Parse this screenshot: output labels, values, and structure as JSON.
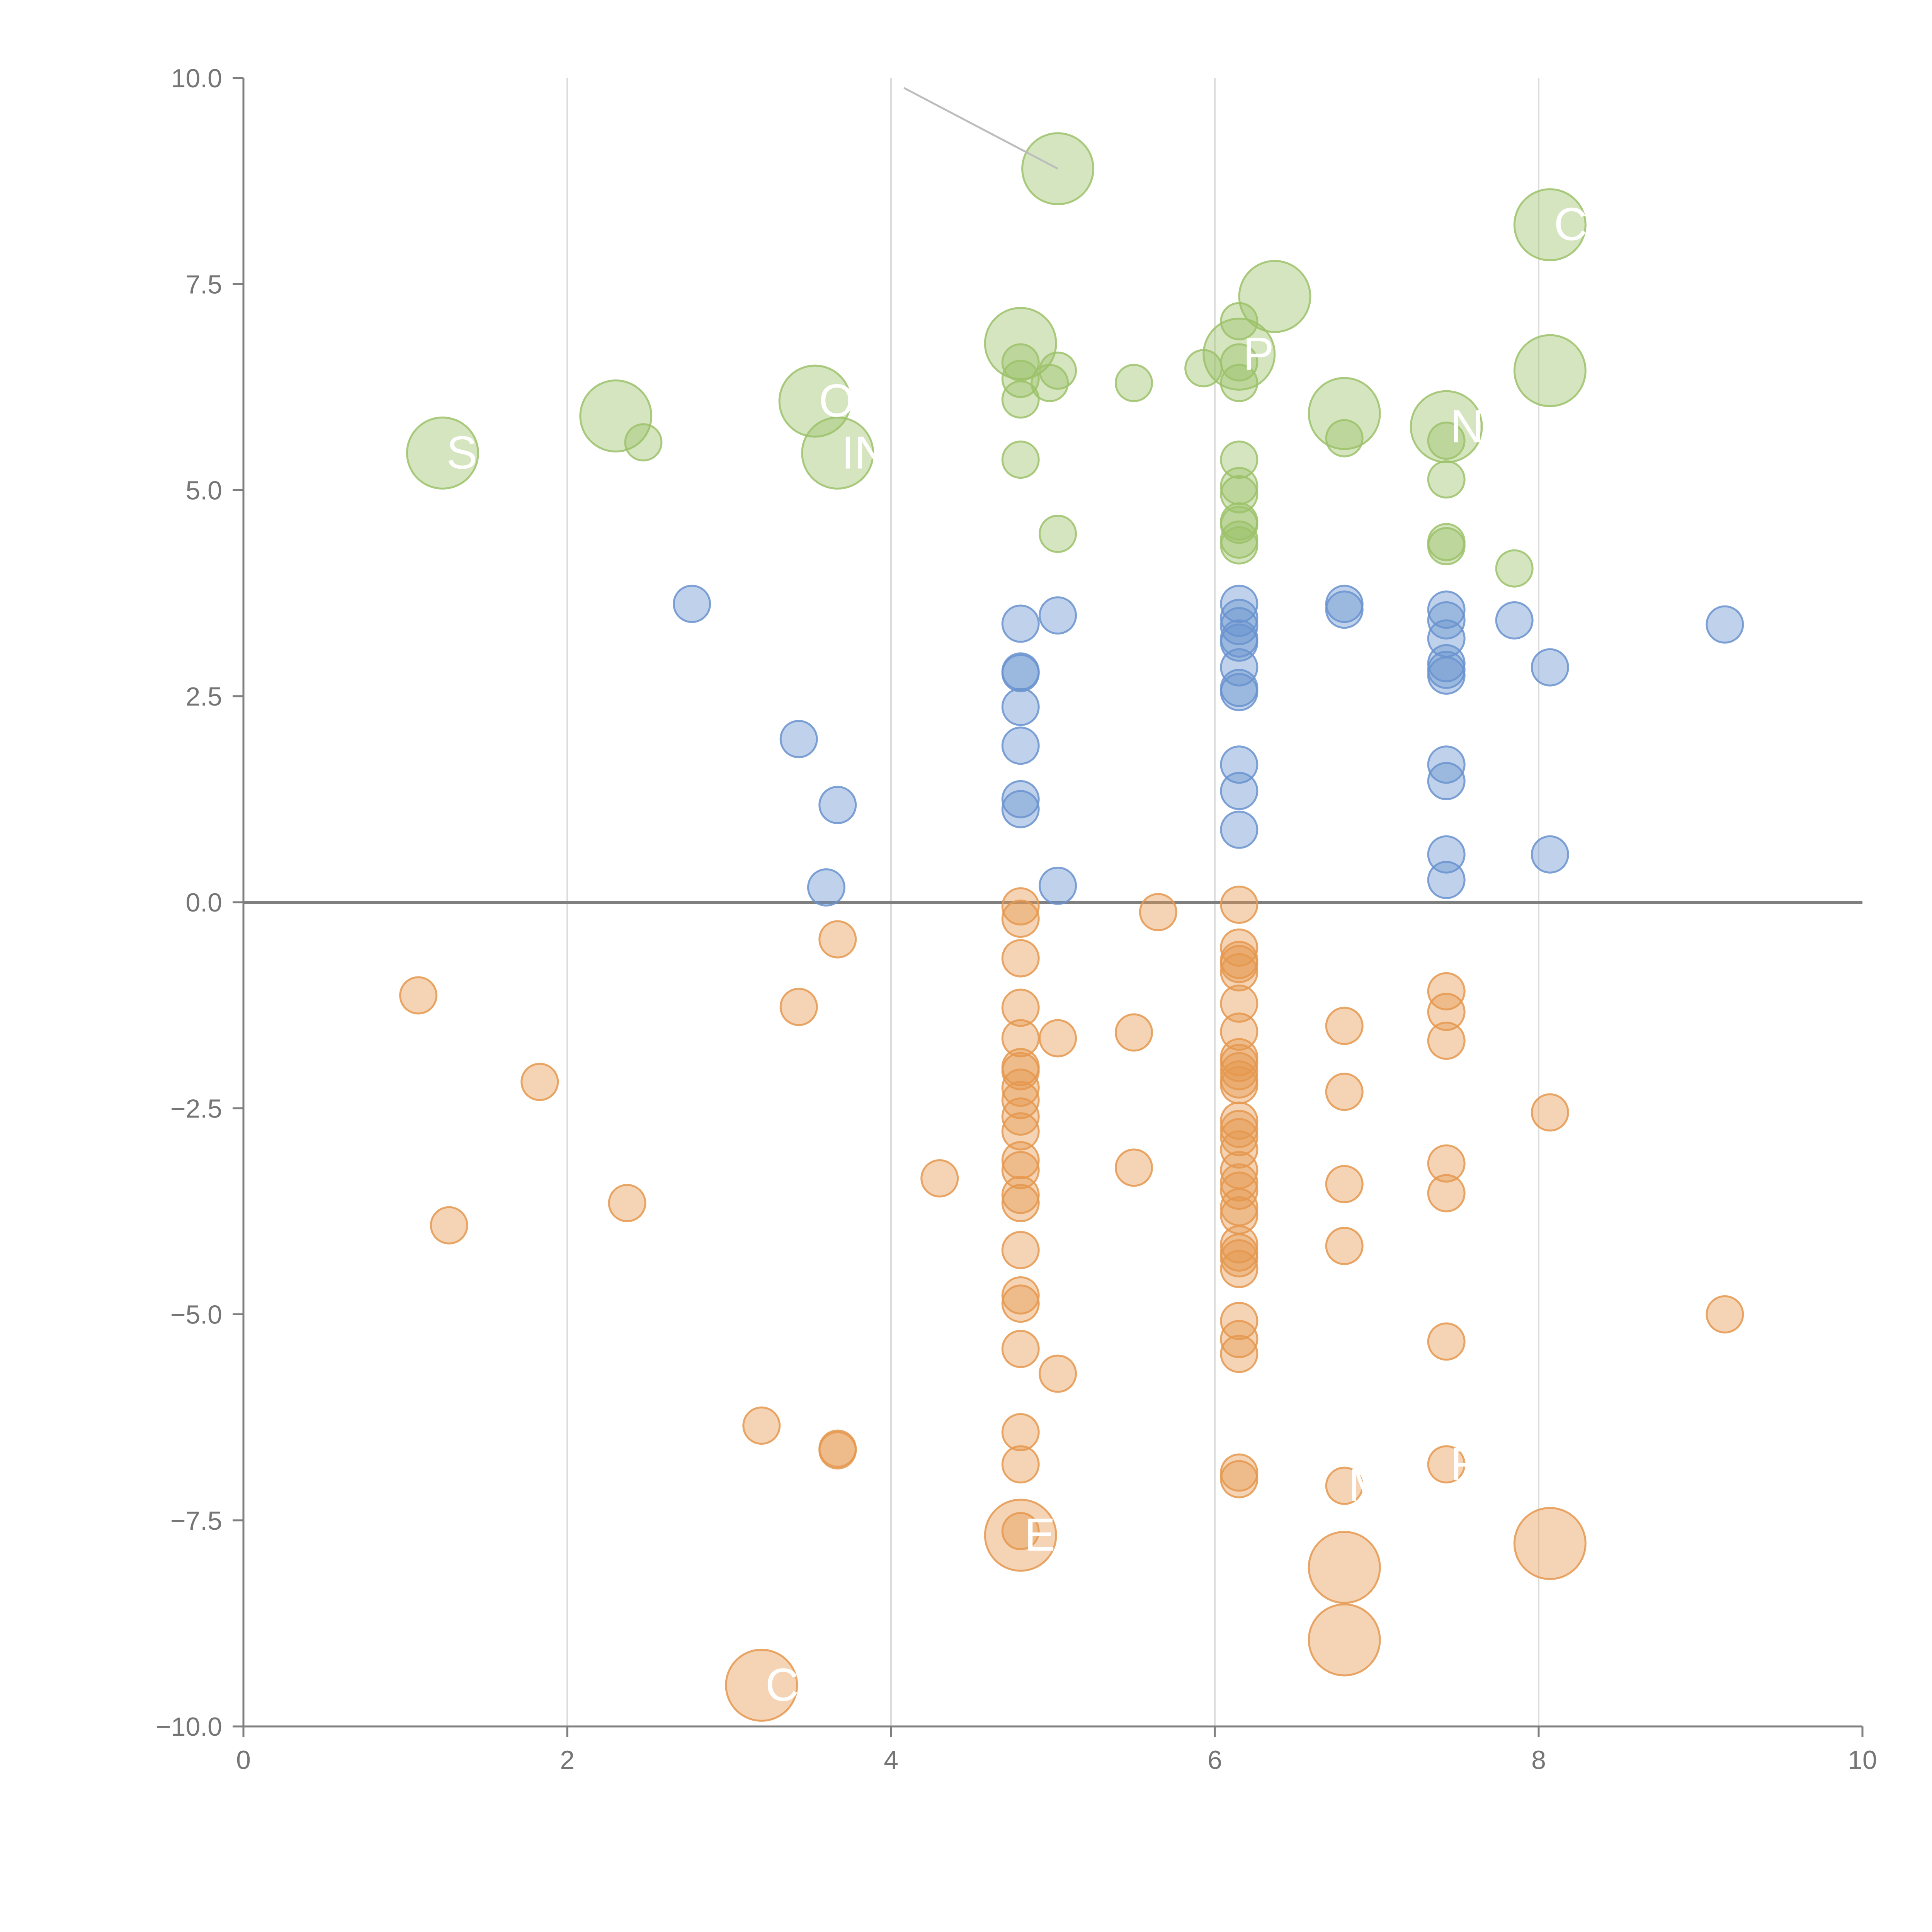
{
  "chart_data": {
    "type": "scatter",
    "title": "",
    "xlabel": "",
    "ylabel": "",
    "xlim": [
      0,
      10
    ],
    "ylim": [
      -10,
      10
    ],
    "x_ticks": [
      {
        "v": 0,
        "label": "0"
      },
      {
        "v": 2,
        "label": "2"
      },
      {
        "v": 4,
        "label": "4"
      },
      {
        "v": 6,
        "label": "6"
      },
      {
        "v": 8,
        "label": "8"
      },
      {
        "v": 10,
        "label": "10"
      }
    ],
    "y_ticks": [
      {
        "v": 10,
        "label": "10.0"
      },
      {
        "v": 7.5,
        "label": "7.5"
      },
      {
        "v": 5,
        "label": "5.0"
      },
      {
        "v": 2.5,
        "label": "2.5"
      },
      {
        "v": 0,
        "label": "0.0"
      },
      {
        "v": -2.5,
        "label": "−2.5"
      },
      {
        "v": -5,
        "label": "−5.0"
      },
      {
        "v": -7.5,
        "label": "−7.5"
      },
      {
        "v": -10,
        "label": "−10.0"
      }
    ],
    "x_grid": [
      2,
      4,
      6,
      8
    ],
    "zero_line": 0,
    "colors": {
      "high": "#9cc26a",
      "mid": "#6a93cf",
      "low": "#e5984f",
      "axis": "#7f7f7f",
      "grid": "#dcdcdc",
      "connector": "#bdbdbd"
    },
    "series": [
      {
        "name": "high",
        "points": [
          [
            5.03,
            8.9,
            1
          ],
          [
            8.07,
            8.22,
            1
          ],
          [
            6.37,
            7.35,
            1
          ],
          [
            4.8,
            6.78,
            1
          ],
          [
            6.15,
            6.65,
            1
          ],
          [
            8.07,
            6.45,
            1
          ],
          [
            3.53,
            6.08,
            1
          ],
          [
            2.3,
            5.9,
            1
          ],
          [
            6.8,
            5.93,
            1
          ],
          [
            7.43,
            5.77,
            1
          ],
          [
            1.23,
            5.45,
            1
          ],
          [
            3.67,
            5.45,
            1
          ],
          [
            6.15,
            7.05,
            0
          ],
          [
            4.8,
            6.55,
            0
          ],
          [
            4.8,
            6.35,
            0
          ],
          [
            5.03,
            6.45,
            0
          ],
          [
            4.8,
            6.1,
            0
          ],
          [
            4.98,
            6.3,
            0
          ],
          [
            5.5,
            6.3,
            0
          ],
          [
            5.93,
            6.48,
            0
          ],
          [
            6.15,
            6.55,
            0
          ],
          [
            6.15,
            6.3,
            0
          ],
          [
            2.47,
            5.58,
            0
          ],
          [
            6.8,
            5.63,
            0
          ],
          [
            7.43,
            5.6,
            0
          ],
          [
            7.43,
            5.13,
            0
          ],
          [
            4.8,
            5.37,
            0
          ],
          [
            6.15,
            5.37,
            0
          ],
          [
            6.15,
            5.05,
            0
          ],
          [
            6.15,
            4.95,
            0
          ],
          [
            6.15,
            4.62,
            0
          ],
          [
            6.15,
            4.58,
            0
          ],
          [
            6.15,
            4.4,
            0
          ],
          [
            6.15,
            4.33,
            0
          ],
          [
            5.03,
            4.47,
            0
          ],
          [
            7.43,
            4.37,
            0
          ],
          [
            7.43,
            4.32,
            0
          ],
          [
            7.85,
            4.05,
            0
          ]
        ]
      },
      {
        "name": "mid",
        "points": [
          [
            2.77,
            3.62,
            0
          ],
          [
            6.8,
            3.62,
            0
          ],
          [
            6.8,
            3.55,
            0
          ],
          [
            6.15,
            3.62,
            0
          ],
          [
            6.15,
            3.45,
            0
          ],
          [
            6.15,
            3.35,
            0
          ],
          [
            6.15,
            3.2,
            0
          ],
          [
            6.15,
            3.15,
            0
          ],
          [
            7.43,
            3.55,
            0
          ],
          [
            7.43,
            3.42,
            0
          ],
          [
            7.43,
            3.2,
            0
          ],
          [
            5.03,
            3.48,
            0
          ],
          [
            4.8,
            3.38,
            0
          ],
          [
            7.85,
            3.42,
            0
          ],
          [
            9.15,
            3.37,
            0
          ],
          [
            6.15,
            2.85,
            0
          ],
          [
            6.15,
            2.6,
            0
          ],
          [
            6.15,
            2.55,
            0
          ],
          [
            7.43,
            2.9,
            0
          ],
          [
            7.43,
            2.82,
            0
          ],
          [
            7.43,
            2.75,
            0
          ],
          [
            8.07,
            2.85,
            0
          ],
          [
            4.8,
            2.8,
            0
          ],
          [
            4.8,
            2.78,
            0
          ],
          [
            4.8,
            2.37,
            0
          ],
          [
            3.43,
            1.98,
            0
          ],
          [
            4.8,
            1.9,
            0
          ],
          [
            6.15,
            1.67,
            0
          ],
          [
            7.43,
            1.67,
            0
          ],
          [
            7.43,
            1.47,
            0
          ],
          [
            6.15,
            1.35,
            0
          ],
          [
            4.8,
            1.25,
            0
          ],
          [
            4.8,
            1.13,
            0
          ],
          [
            3.67,
            1.18,
            0
          ],
          [
            6.15,
            0.88,
            0
          ],
          [
            7.43,
            0.58,
            0
          ],
          [
            8.07,
            0.58,
            0
          ],
          [
            7.43,
            0.27,
            0
          ],
          [
            3.6,
            0.18,
            0
          ],
          [
            5.03,
            0.2,
            0
          ]
        ]
      },
      {
        "name": "low",
        "points": [
          [
            4.8,
            -0.05,
            0
          ],
          [
            4.8,
            -0.2,
            0
          ],
          [
            5.65,
            -0.12,
            0
          ],
          [
            6.15,
            -0.03,
            0
          ],
          [
            3.67,
            -0.45,
            0
          ],
          [
            6.15,
            -0.55,
            0
          ],
          [
            6.15,
            -0.7,
            0
          ],
          [
            6.15,
            -0.75,
            0
          ],
          [
            6.15,
            -0.85,
            0
          ],
          [
            4.8,
            -0.68,
            0
          ],
          [
            1.08,
            -1.13,
            0
          ],
          [
            7.43,
            -1.08,
            0
          ],
          [
            3.43,
            -1.27,
            0
          ],
          [
            4.8,
            -1.28,
            0
          ],
          [
            6.15,
            -1.23,
            0
          ],
          [
            7.43,
            -1.33,
            0
          ],
          [
            6.8,
            -1.5,
            0
          ],
          [
            5.5,
            -1.58,
            0
          ],
          [
            4.8,
            -1.65,
            0
          ],
          [
            5.03,
            -1.65,
            0
          ],
          [
            6.15,
            -1.57,
            0
          ],
          [
            7.43,
            -1.68,
            0
          ],
          [
            6.15,
            -1.88,
            0
          ],
          [
            6.15,
            -1.95,
            0
          ],
          [
            4.8,
            -2.0,
            0
          ],
          [
            4.8,
            -2.05,
            0
          ],
          [
            6.15,
            -2.05,
            0
          ],
          [
            6.15,
            -2.15,
            0
          ],
          [
            6.15,
            -2.22,
            0
          ],
          [
            1.83,
            -2.18,
            0
          ],
          [
            4.8,
            -2.25,
            0
          ],
          [
            4.8,
            -2.4,
            0
          ],
          [
            6.8,
            -2.3,
            0
          ],
          [
            4.8,
            -2.6,
            0
          ],
          [
            8.07,
            -2.55,
            0
          ],
          [
            6.15,
            -2.65,
            0
          ],
          [
            6.15,
            -2.75,
            0
          ],
          [
            6.15,
            -2.85,
            0
          ],
          [
            4.8,
            -2.78,
            0
          ],
          [
            6.15,
            -3.0,
            0
          ],
          [
            4.8,
            -3.13,
            0
          ],
          [
            4.8,
            -3.25,
            0
          ],
          [
            5.5,
            -3.22,
            0
          ],
          [
            7.43,
            -3.17,
            0
          ],
          [
            6.15,
            -3.25,
            0
          ],
          [
            4.3,
            -3.35,
            0
          ],
          [
            6.15,
            -3.4,
            0
          ],
          [
            6.15,
            -3.5,
            0
          ],
          [
            6.8,
            -3.42,
            0
          ],
          [
            4.8,
            -3.55,
            0
          ],
          [
            4.8,
            -3.65,
            0
          ],
          [
            7.43,
            -3.53,
            0
          ],
          [
            2.37,
            -3.65,
            0
          ],
          [
            6.15,
            -3.7,
            0
          ],
          [
            6.15,
            -3.8,
            0
          ],
          [
            1.27,
            -3.92,
            0
          ],
          [
            6.15,
            -4.15,
            0
          ],
          [
            6.15,
            -4.25,
            0
          ],
          [
            4.8,
            -4.22,
            0
          ],
          [
            6.8,
            -4.17,
            0
          ],
          [
            6.15,
            -4.32,
            0
          ],
          [
            6.15,
            -4.45,
            0
          ],
          [
            4.8,
            -4.77,
            0
          ],
          [
            4.8,
            -4.87,
            0
          ],
          [
            9.15,
            -5.0,
            0
          ],
          [
            6.15,
            -5.08,
            0
          ],
          [
            6.15,
            -5.3,
            0
          ],
          [
            7.43,
            -5.33,
            0
          ],
          [
            6.15,
            -5.48,
            0
          ],
          [
            4.8,
            -5.42,
            0
          ],
          [
            5.03,
            -5.72,
            0
          ],
          [
            3.2,
            -6.35,
            0
          ],
          [
            4.8,
            -6.43,
            0
          ],
          [
            3.67,
            -6.63,
            0
          ],
          [
            3.67,
            -6.65,
            0
          ],
          [
            4.8,
            -6.82,
            0
          ],
          [
            6.15,
            -6.92,
            0
          ],
          [
            6.15,
            -7.0,
            0
          ],
          [
            7.43,
            -6.82,
            0
          ],
          [
            6.8,
            -7.08,
            0
          ],
          [
            4.8,
            -7.68,
            1
          ],
          [
            8.07,
            -7.78,
            1
          ],
          [
            6.8,
            -8.07,
            1
          ],
          [
            6.8,
            -8.95,
            1
          ],
          [
            3.2,
            -9.5,
            1
          ],
          [
            4.8,
            -7.63,
            0
          ]
        ]
      }
    ],
    "labels": [
      {
        "text": "NE",
        "x": 7.43,
        "y": 5.77
      },
      {
        "text": "IN",
        "x": 3.67,
        "y": 5.45
      },
      {
        "text": "ST",
        "x": 1.23,
        "y": 5.45
      },
      {
        "text": "P",
        "x": 6.15,
        "y": 6.65
      },
      {
        "text": "O",
        "x": 3.53,
        "y": 6.08
      },
      {
        "text": "C",
        "x": 8.07,
        "y": 8.22
      },
      {
        "text": "E",
        "x": 4.8,
        "y": -7.68
      },
      {
        "text": "M",
        "x": 6.8,
        "y": -7.08
      },
      {
        "text": "R",
        "x": 7.43,
        "y": -6.82
      },
      {
        "text": "C",
        "x": 3.2,
        "y": -9.5
      }
    ],
    "connectors": [
      {
        "from": [
          4.08,
          9.88
        ],
        "to": [
          5.03,
          8.9
        ]
      }
    ]
  }
}
